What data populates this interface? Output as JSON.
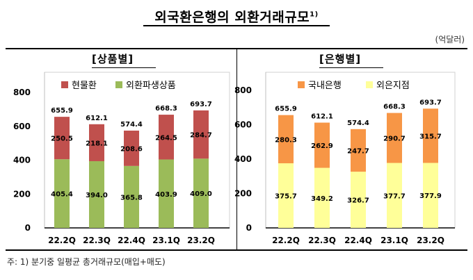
{
  "title": "외국환은행의 외환거래규모",
  "title_note": "1)",
  "unit": "(억달러)",
  "footnote": "주: 1) 분기중 일평균 총거래규모(매입+매도)",
  "chart_data": [
    {
      "type": "bar",
      "stacked": true,
      "title": "[상품별]",
      "categories": [
        "22.2Q",
        "22.3Q",
        "22.4Q",
        "23.1Q",
        "23.2Q"
      ],
      "ylim": [
        0,
        800
      ],
      "yticks": [
        0,
        200,
        400,
        600,
        800
      ],
      "totals": [
        "655.9",
        "612.1",
        "574.4",
        "668.3",
        "693.7"
      ],
      "legend_position": "top-left",
      "series": [
        {
          "name": "외환파생상품",
          "color": "#9bbb59",
          "values": [
            405.4,
            394.0,
            365.8,
            403.9,
            409.0
          ],
          "labels": [
            "405.4",
            "394.0",
            "365.8",
            "403.9",
            "409.0"
          ]
        },
        {
          "name": "현물환",
          "color": "#c0504d",
          "values": [
            250.5,
            218.1,
            208.6,
            264.5,
            284.7
          ],
          "labels": [
            "250.5",
            "218.1",
            "208.6",
            "264.5",
            "284.7"
          ]
        }
      ]
    },
    {
      "type": "bar",
      "stacked": true,
      "title": "[은행별]",
      "categories": [
        "22.2Q",
        "22.3Q",
        "22.4Q",
        "23.1Q",
        "23.2Q"
      ],
      "ylim": [
        0,
        800
      ],
      "yticks": [
        0,
        200,
        400,
        600,
        800
      ],
      "totals": [
        "655.9",
        "612.1",
        "574.4",
        "668.3",
        "693.7"
      ],
      "legend_position": "top-left",
      "series": [
        {
          "name": "외은지점",
          "color": "#ffff99",
          "values": [
            375.7,
            349.2,
            326.7,
            377.7,
            377.9
          ],
          "labels": [
            "375.7",
            "349.2",
            "326.7",
            "377.7",
            "377.9"
          ]
        },
        {
          "name": "국내은행",
          "color": "#f79646",
          "values": [
            280.3,
            262.9,
            247.7,
            290.7,
            315.7
          ],
          "labels": [
            "280.3",
            "262.9",
            "247.7",
            "290.7",
            "315.7"
          ]
        }
      ]
    }
  ]
}
